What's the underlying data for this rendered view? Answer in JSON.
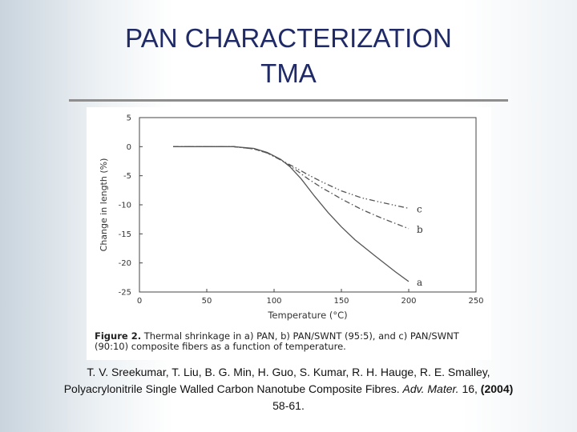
{
  "slide": {
    "title_line1": "PAN CHARACTERIZATION",
    "title_line2": "TMA"
  },
  "figure": {
    "caption_label": "Figure 2.",
    "caption_text": "Thermal shrinkage in a) PAN, b) PAN/SWNT (95:5), and c) PAN/SWNT (90:10) composite fibers as a function of temperature."
  },
  "reference": {
    "line1": "T. V. Sreekumar, T. Liu, B. G. Min, H. Guo, S. Kumar, R. H. Hauge, R. E. Smalley,",
    "line2_text": "Polyacrylonitrile Single Walled Carbon Nanotube Composite Fibres.",
    "journal": "Adv. Mater.",
    "volume": "16,",
    "year": "(2004)",
    "pages": "58-61."
  },
  "chart_data": {
    "type": "line",
    "xlabel": "Temperature (°C)",
    "ylabel": "Change in length (%)",
    "xlim": [
      0,
      250
    ],
    "ylim": [
      -25,
      5
    ],
    "xticks": [
      0,
      50,
      100,
      150,
      200,
      250
    ],
    "yticks": [
      5,
      0,
      -5,
      -10,
      -15,
      -20,
      -25
    ],
    "grid": false,
    "series": [
      {
        "name": "a",
        "style": "solid",
        "color": "#555555",
        "x": [
          25,
          50,
          70,
          85,
          95,
          105,
          112,
          120,
          130,
          140,
          150,
          160,
          175,
          190,
          200
        ],
        "y": [
          0,
          0,
          0,
          -0.3,
          -1,
          -2.2,
          -3.5,
          -5.5,
          -8.5,
          -11.3,
          -13.8,
          -16,
          -18.8,
          -21.5,
          -23.2
        ]
      },
      {
        "name": "b",
        "style": "dash-dot",
        "color": "#555555",
        "x": [
          25,
          50,
          70,
          85,
          95,
          105,
          115,
          125,
          135,
          150,
          165,
          180,
          200
        ],
        "y": [
          0,
          0,
          0,
          -0.4,
          -1.1,
          -2.3,
          -3.8,
          -5.5,
          -7,
          -9,
          -10.8,
          -12.3,
          -14.1
        ]
      },
      {
        "name": "c",
        "style": "dash-dot-dot",
        "color": "#555555",
        "x": [
          25,
          50,
          70,
          85,
          95,
          105,
          115,
          125,
          135,
          150,
          165,
          180,
          200
        ],
        "y": [
          0,
          0,
          0,
          -0.4,
          -1.1,
          -2.3,
          -3.5,
          -4.8,
          -6,
          -7.6,
          -8.8,
          -9.6,
          -10.6
        ]
      }
    ]
  }
}
